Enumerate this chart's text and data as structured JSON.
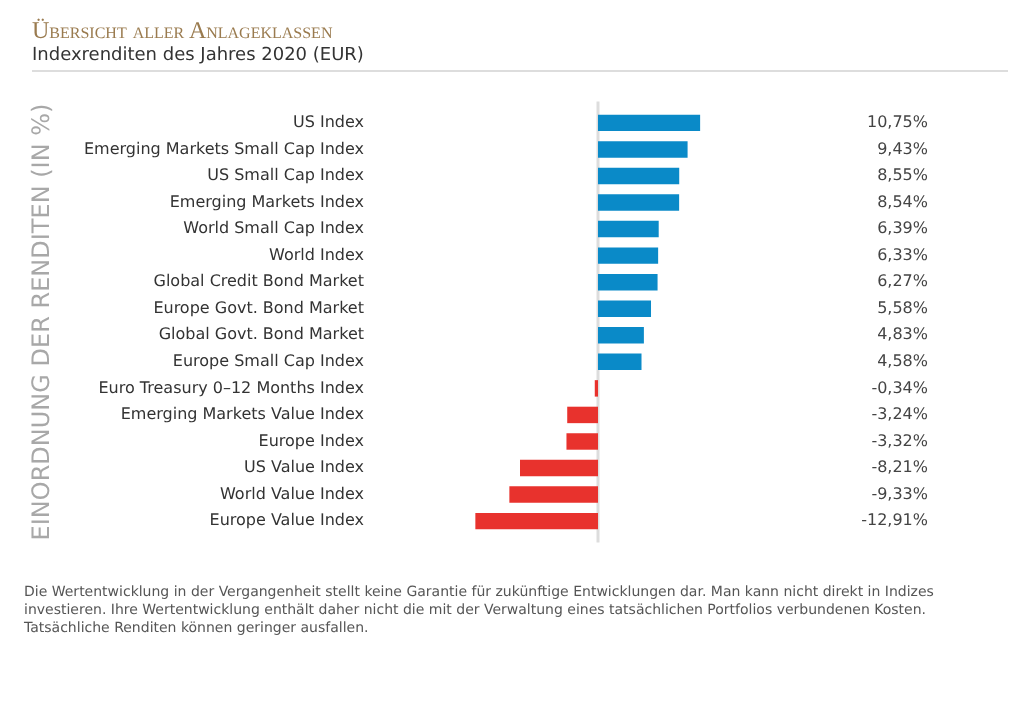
{
  "chart_data": {
    "type": "bar",
    "orientation": "horizontal",
    "title": "Übersicht aller Anlageklassen",
    "subtitle": "Indexrenditen des Jahres 2020 (EUR)",
    "ylabel": "EINORDNUNG DER RENDITEN (IN %)",
    "categories": [
      "US Index",
      "Emerging Markets Small Cap Index",
      "US Small Cap Index",
      "Emerging Markets Index",
      "World Small Cap Index",
      "World Index",
      "Global Credit Bond Market",
      "Europe Govt. Bond Market",
      "Global Govt. Bond Market",
      "Europe Small Cap Index",
      "Euro Treasury 0–12 Months Index",
      "Emerging Markets Value Index",
      "Europe Index",
      "US Value Index",
      "World Value Index",
      "Europe Value Index"
    ],
    "values": [
      10.75,
      9.43,
      8.55,
      8.54,
      6.39,
      6.33,
      6.27,
      5.58,
      4.83,
      4.58,
      -0.34,
      -3.24,
      -3.32,
      -8.21,
      -9.33,
      -12.91
    ],
    "value_labels": [
      "10,75%",
      "9,43%",
      "8,55%",
      "8,54%",
      "6,39%",
      "6,33%",
      "6,27%",
      "5,58%",
      "4,83%",
      "4,58%",
      "-0,34%",
      "-3,24%",
      "-3,32%",
      "-8,21%",
      "-9,33%",
      "-12,91%"
    ],
    "colors": [
      "#0a8ac8",
      "#0a8ac8",
      "#0a8ac8",
      "#0a8ac8",
      "#0a8ac8",
      "#0a8ac8",
      "#0a8ac8",
      "#0a8ac8",
      "#0a8ac8",
      "#0a8ac8",
      "#e8322d",
      "#e8322d",
      "#e8322d",
      "#e8322d",
      "#e8322d",
      "#e8322d"
    ],
    "tick_labels": "y",
    "legend": false,
    "ref_lines": [
      {
        "axis": "x",
        "value": 0,
        "color": "#dddddd"
      }
    ],
    "annotations": [
      "Die Wertentwicklung in der Vergangenheit stellt keine Garantie für zukünftige Entwicklungen dar. Man kann nicht direkt in Indizes investieren. Ihre Wertentwicklung enthält daher nicht die mit der Verwaltung eines tatsächlichen Portfolios verbundenen Kosten. Tatsächliche Renditen können geringer ausfallen."
    ]
  }
}
